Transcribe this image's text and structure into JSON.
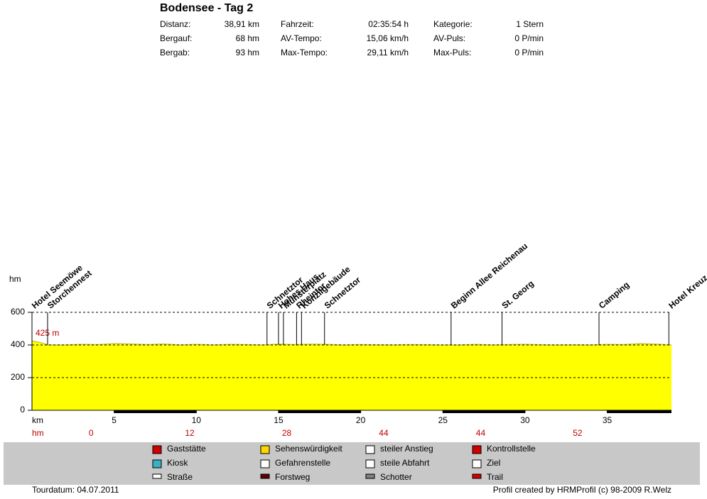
{
  "header": {
    "title": "Bodensee - Tag 2",
    "stats": [
      [
        [
          "Distanz:",
          "38,91 km"
        ],
        [
          "Bergauf:",
          "68 hm"
        ],
        [
          "Bergab:",
          "93 hm"
        ]
      ],
      [
        [
          "Fahrzeit:",
          "02:35:54 h"
        ],
        [
          "AV-Tempo:",
          "15,06 km/h"
        ],
        [
          "Max-Tempo:",
          "29,11 km/h"
        ]
      ],
      [
        [
          "Kategorie:",
          "1 Stern"
        ],
        [
          "AV-Puls:",
          "0 P/min"
        ],
        [
          "Max-Puls:",
          "0 P/min"
        ]
      ]
    ]
  },
  "chart_data": {
    "type": "area",
    "ylabel": "hm",
    "xlabel": "km",
    "start_label": "425 m",
    "x": [
      0,
      0.5,
      1,
      2,
      3,
      4,
      5,
      6,
      7,
      8,
      9,
      10,
      11,
      12,
      13,
      14,
      15,
      16,
      17,
      18,
      19,
      20,
      21,
      22,
      23,
      24,
      25,
      26,
      27,
      28,
      29,
      30,
      31,
      32,
      33,
      34,
      35,
      36,
      37,
      38,
      38.91
    ],
    "values": [
      425,
      415,
      400,
      400,
      404,
      402,
      408,
      406,
      402,
      406,
      400,
      404,
      400,
      403,
      402,
      400,
      405,
      402,
      405,
      403,
      400,
      402,
      401,
      400,
      402,
      401,
      400,
      400,
      403,
      400,
      402,
      404,
      401,
      400,
      401,
      400,
      403,
      402,
      408,
      405,
      400
    ],
    "color": "#ffff00",
    "line_color": "#c8c83c",
    "xlim": [
      0,
      38.91
    ],
    "xticks": [
      5,
      10,
      15,
      20,
      25,
      30,
      35
    ],
    "ylim": [
      0,
      600
    ],
    "yticks": [
      0,
      200,
      400,
      600
    ],
    "grid": true,
    "waypoints": [
      {
        "name": "Hotel Seemöwe",
        "km": 0
      },
      {
        "name": "Storchennest",
        "km": 0.95
      },
      {
        "name": "Schnetztor",
        "km": 14.3
      },
      {
        "name": "Hohes Haus",
        "km": 15.0
      },
      {
        "name": "Münsterplatz",
        "km": 15.3
      },
      {
        "name": "Rheintor",
        "km": 16.1
      },
      {
        "name": "Konzilgebäude",
        "km": 16.4
      },
      {
        "name": "Schnetztor",
        "km": 17.8
      },
      {
        "name": "Beginn Allee Reichenau",
        "km": 25.5
      },
      {
        "name": "St. Georg",
        "km": 28.6
      },
      {
        "name": "Camping",
        "km": 34.5
      },
      {
        "name": "Hotel Kreuz",
        "km": 38.75
      }
    ],
    "hm_label": "hm",
    "hm_row": [
      {
        "km": 3.6,
        "value": 0
      },
      {
        "km": 9.6,
        "value": 12
      },
      {
        "km": 15.5,
        "value": 28
      },
      {
        "km": 21.4,
        "value": 44
      },
      {
        "km": 27.3,
        "value": 44
      },
      {
        "km": 33.2,
        "value": 52
      }
    ]
  },
  "legend": [
    [
      "Gaststätte",
      "Kiosk",
      "Straße"
    ],
    [
      "Sehenswürdigkeit",
      "Gefahrenstelle",
      "Forstweg"
    ],
    [
      "steiler Anstieg",
      "steile Abfahrt",
      "Schotter"
    ],
    [
      "Kontrollstelle",
      "Ziel",
      "Trail"
    ]
  ],
  "footer": {
    "date": "Tourdatum: 04.07.2011",
    "credit": "Profil created by HRMProfil (c) 98-2009 R.Welz"
  }
}
